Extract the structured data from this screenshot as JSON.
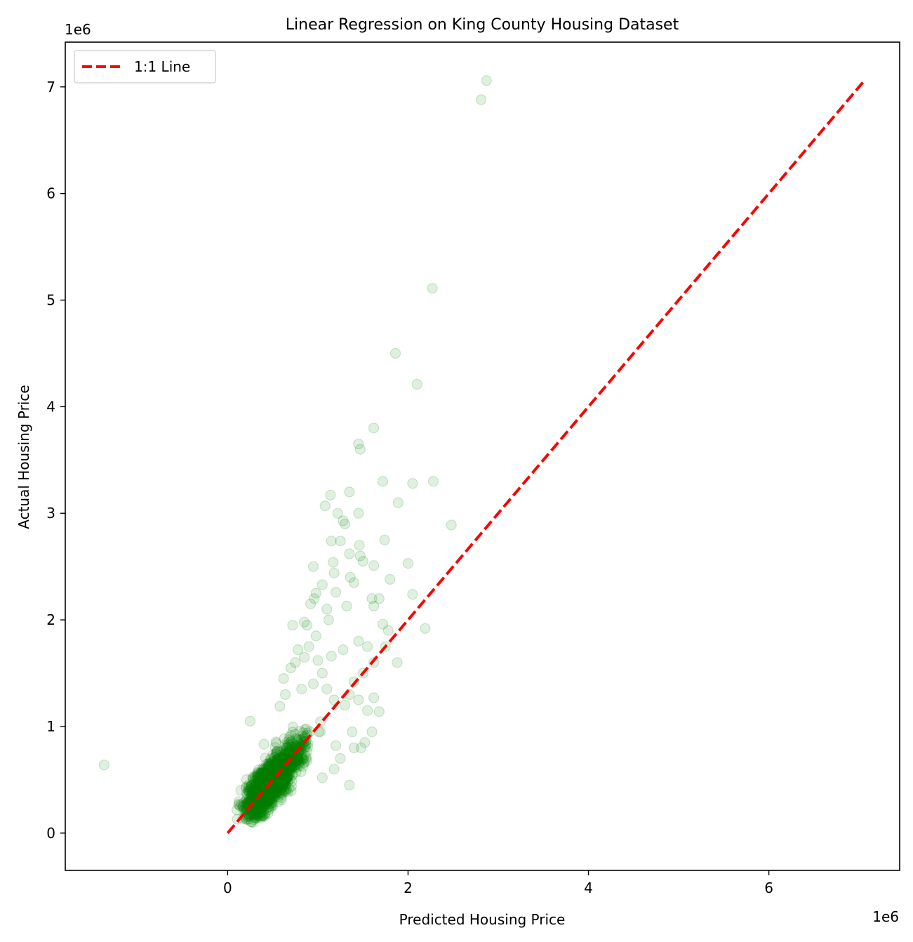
{
  "chart_data": {
    "type": "scatter",
    "title": "Linear Regression on King County Housing Dataset",
    "xlabel": "Predicted Housing Price",
    "ylabel": "Actual Housing Price",
    "x_multiplier": "1e6",
    "y_multiplier": "1e6",
    "xlim": [
      -1.8,
      7.45
    ],
    "ylim": [
      -0.35,
      7.42
    ],
    "xticks": [
      0,
      2,
      4,
      6
    ],
    "yticks": [
      0,
      1,
      2,
      3,
      4,
      5,
      6,
      7
    ],
    "grid": false,
    "legend": {
      "location": "upper left",
      "entries": [
        "1:1 Line"
      ]
    },
    "series": [
      {
        "type": "scatter",
        "color": "#008000",
        "alpha": 0.12,
        "points": [
          [
            -1.37,
            0.64
          ],
          [
            2.87,
            7.06
          ],
          [
            2.81,
            6.88
          ],
          [
            2.27,
            5.11
          ],
          [
            1.86,
            4.5
          ],
          [
            2.1,
            4.21
          ],
          [
            1.62,
            3.8
          ],
          [
            1.45,
            3.65
          ],
          [
            1.47,
            3.6
          ],
          [
            1.72,
            3.3
          ],
          [
            2.28,
            3.3
          ],
          [
            2.05,
            3.28
          ],
          [
            1.35,
            3.2
          ],
          [
            1.14,
            3.17
          ],
          [
            1.08,
            3.07
          ],
          [
            1.89,
            3.1
          ],
          [
            2.48,
            2.89
          ],
          [
            1.22,
            3.0
          ],
          [
            1.45,
            3.0
          ],
          [
            1.28,
            2.93
          ],
          [
            1.3,
            2.9
          ],
          [
            1.74,
            2.75
          ],
          [
            1.15,
            2.74
          ],
          [
            1.25,
            2.74
          ],
          [
            1.46,
            2.7
          ],
          [
            1.35,
            2.62
          ],
          [
            1.47,
            2.6
          ],
          [
            1.17,
            2.54
          ],
          [
            1.5,
            2.55
          ],
          [
            1.62,
            2.51
          ],
          [
            2.0,
            2.53
          ],
          [
            0.95,
            2.5
          ],
          [
            1.18,
            2.44
          ],
          [
            1.36,
            2.4
          ],
          [
            1.4,
            2.35
          ],
          [
            1.8,
            2.38
          ],
          [
            1.05,
            2.33
          ],
          [
            1.2,
            2.26
          ],
          [
            0.98,
            2.25
          ],
          [
            1.6,
            2.2
          ],
          [
            1.68,
            2.2
          ],
          [
            2.05,
            2.24
          ],
          [
            1.62,
            2.13
          ],
          [
            1.32,
            2.13
          ],
          [
            1.1,
            2.1
          ],
          [
            0.96,
            2.2
          ],
          [
            0.92,
            2.15
          ],
          [
            1.12,
            2.0
          ],
          [
            0.85,
            1.98
          ],
          [
            0.72,
            1.95
          ],
          [
            1.72,
            1.96
          ],
          [
            1.78,
            1.9
          ],
          [
            2.19,
            1.92
          ],
          [
            1.55,
            1.75
          ],
          [
            1.45,
            1.8
          ],
          [
            1.28,
            1.72
          ],
          [
            1.15,
            1.66
          ],
          [
            1.75,
            1.75
          ],
          [
            1.88,
            1.6
          ],
          [
            1.62,
            1.6
          ],
          [
            1.5,
            1.5
          ],
          [
            1.4,
            1.42
          ],
          [
            1.35,
            1.3
          ],
          [
            1.62,
            1.27
          ],
          [
            1.45,
            1.25
          ],
          [
            1.55,
            1.15
          ],
          [
            1.68,
            1.14
          ],
          [
            1.3,
            1.2
          ],
          [
            1.6,
            0.95
          ],
          [
            1.48,
            0.8
          ],
          [
            1.52,
            0.85
          ],
          [
            1.4,
            0.8
          ],
          [
            1.38,
            0.95
          ],
          [
            1.25,
            0.7
          ],
          [
            1.35,
            0.45
          ],
          [
            1.18,
            0.6
          ],
          [
            1.05,
            0.52
          ],
          [
            1.2,
            0.82
          ],
          [
            0.25,
            1.05
          ],
          [
            0.58,
            1.19
          ],
          [
            0.64,
            1.3
          ],
          [
            0.62,
            1.45
          ],
          [
            0.75,
            1.6
          ],
          [
            0.85,
            1.65
          ],
          [
            0.9,
            1.75
          ],
          [
            0.98,
            1.85
          ],
          [
            1.05,
            1.5
          ],
          [
            0.95,
            1.4
          ],
          [
            0.78,
            1.72
          ],
          [
            0.7,
            1.55
          ],
          [
            0.82,
            1.35
          ],
          [
            0.88,
            1.95
          ],
          [
            1.0,
            1.62
          ],
          [
            1.1,
            1.35
          ],
          [
            1.18,
            1.25
          ]
        ]
      },
      {
        "type": "line",
        "name": "1:1 Line",
        "color": "#ff0000",
        "dash": "dashed",
        "points": [
          [
            0,
            0
          ],
          [
            7.06,
            7.06
          ]
        ]
      }
    ]
  }
}
